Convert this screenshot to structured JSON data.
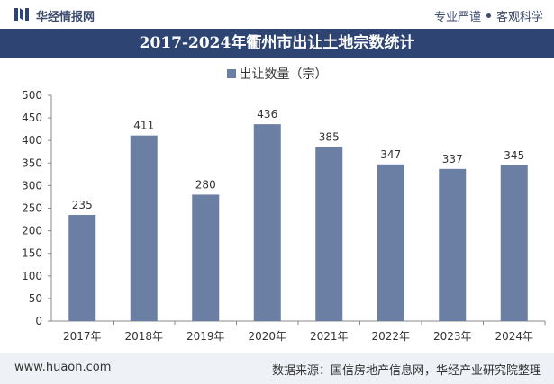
{
  "header": {
    "brand": "华经情报网",
    "slogan_left": "专业严谨",
    "slogan_right": "客观科学"
  },
  "title": "2017-2024年衢州市出让土地宗数统计",
  "legend": {
    "label": "出让数量（宗）"
  },
  "footer": {
    "website": "www.huaon.com",
    "source": "数据来源：国信房地产信息网，华经产业研究院整理"
  },
  "colors": {
    "bar": "#6b7fa4",
    "title_bg": "#2e4573",
    "footer_bg": "#eef1f6"
  },
  "chart_data": {
    "type": "bar",
    "title": "2017-2024年衢州市出让土地宗数统计",
    "categories": [
      "2017年",
      "2018年",
      "2019年",
      "2020年",
      "2021年",
      "2022年",
      "2023年",
      "2024年"
    ],
    "series": [
      {
        "name": "出让数量（宗）",
        "values": [
          235,
          411,
          280,
          436,
          385,
          347,
          337,
          345
        ]
      }
    ],
    "ylim": [
      0,
      500
    ],
    "yticks": [
      0,
      50,
      100,
      150,
      200,
      250,
      300,
      350,
      400,
      450,
      500
    ],
    "grid": false,
    "legend_position": "top",
    "data_labels": true
  }
}
